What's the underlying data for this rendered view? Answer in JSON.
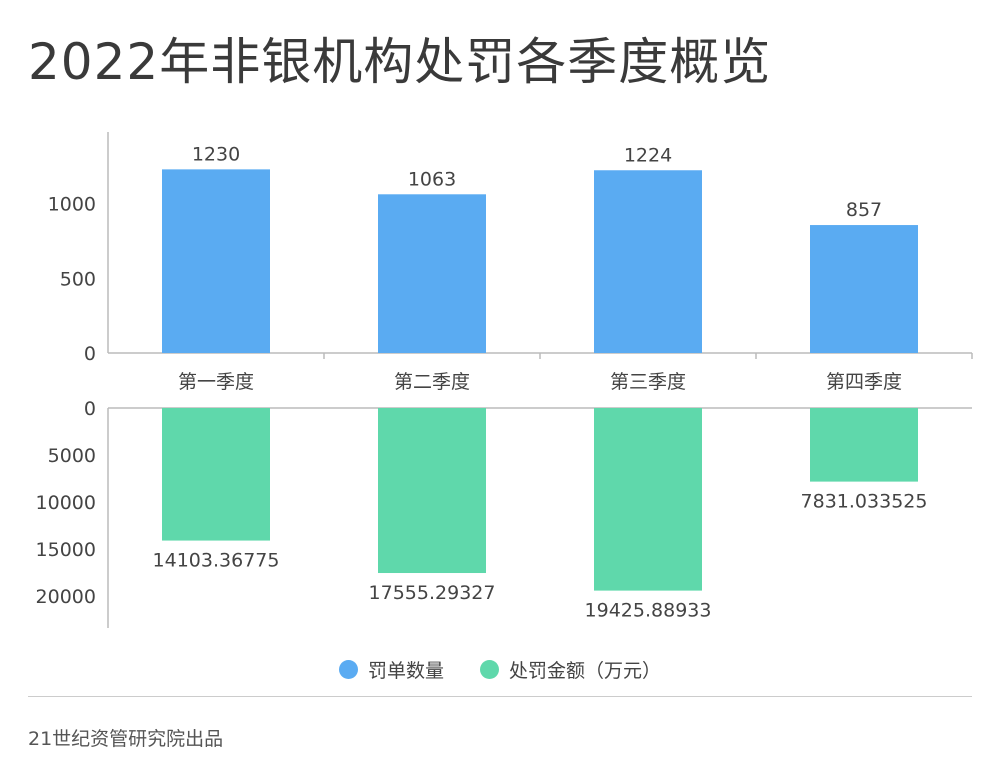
{
  "title": "2022年非银机构处罚各季度概览",
  "source": "21世纪资管研究院出品",
  "legend": {
    "count_label": "罚单数量",
    "amount_label": "处罚金额（万元）"
  },
  "colors": {
    "count": "#5aabf2",
    "amount": "#5fd8ab",
    "axis": "#bbbbbb",
    "text": "#333333"
  },
  "chart_data": {
    "type": "bar",
    "categories": [
      "第一季度",
      "第二季度",
      "第三季度",
      "第四季度"
    ],
    "series": [
      {
        "name": "罚单数量",
        "values": [
          1230,
          1063,
          1224,
          857
        ],
        "value_labels": [
          "1230",
          "1063",
          "1224",
          "857"
        ],
        "ylim": [
          0,
          1400
        ],
        "yticks": [
          0,
          500,
          1000
        ],
        "direction": "up"
      },
      {
        "name": "处罚金额（万元）",
        "values": [
          14103.36775,
          17555.29327,
          19425.88933,
          7831.033525
        ],
        "value_labels": [
          "14103.36775",
          "17555.29327",
          "19425.88933",
          "7831.033525"
        ],
        "ylim": [
          0,
          23000
        ],
        "yticks": [
          0,
          5000,
          10000,
          15000,
          20000
        ],
        "direction": "down"
      }
    ],
    "legend_position": "bottom",
    "grid": false
  }
}
